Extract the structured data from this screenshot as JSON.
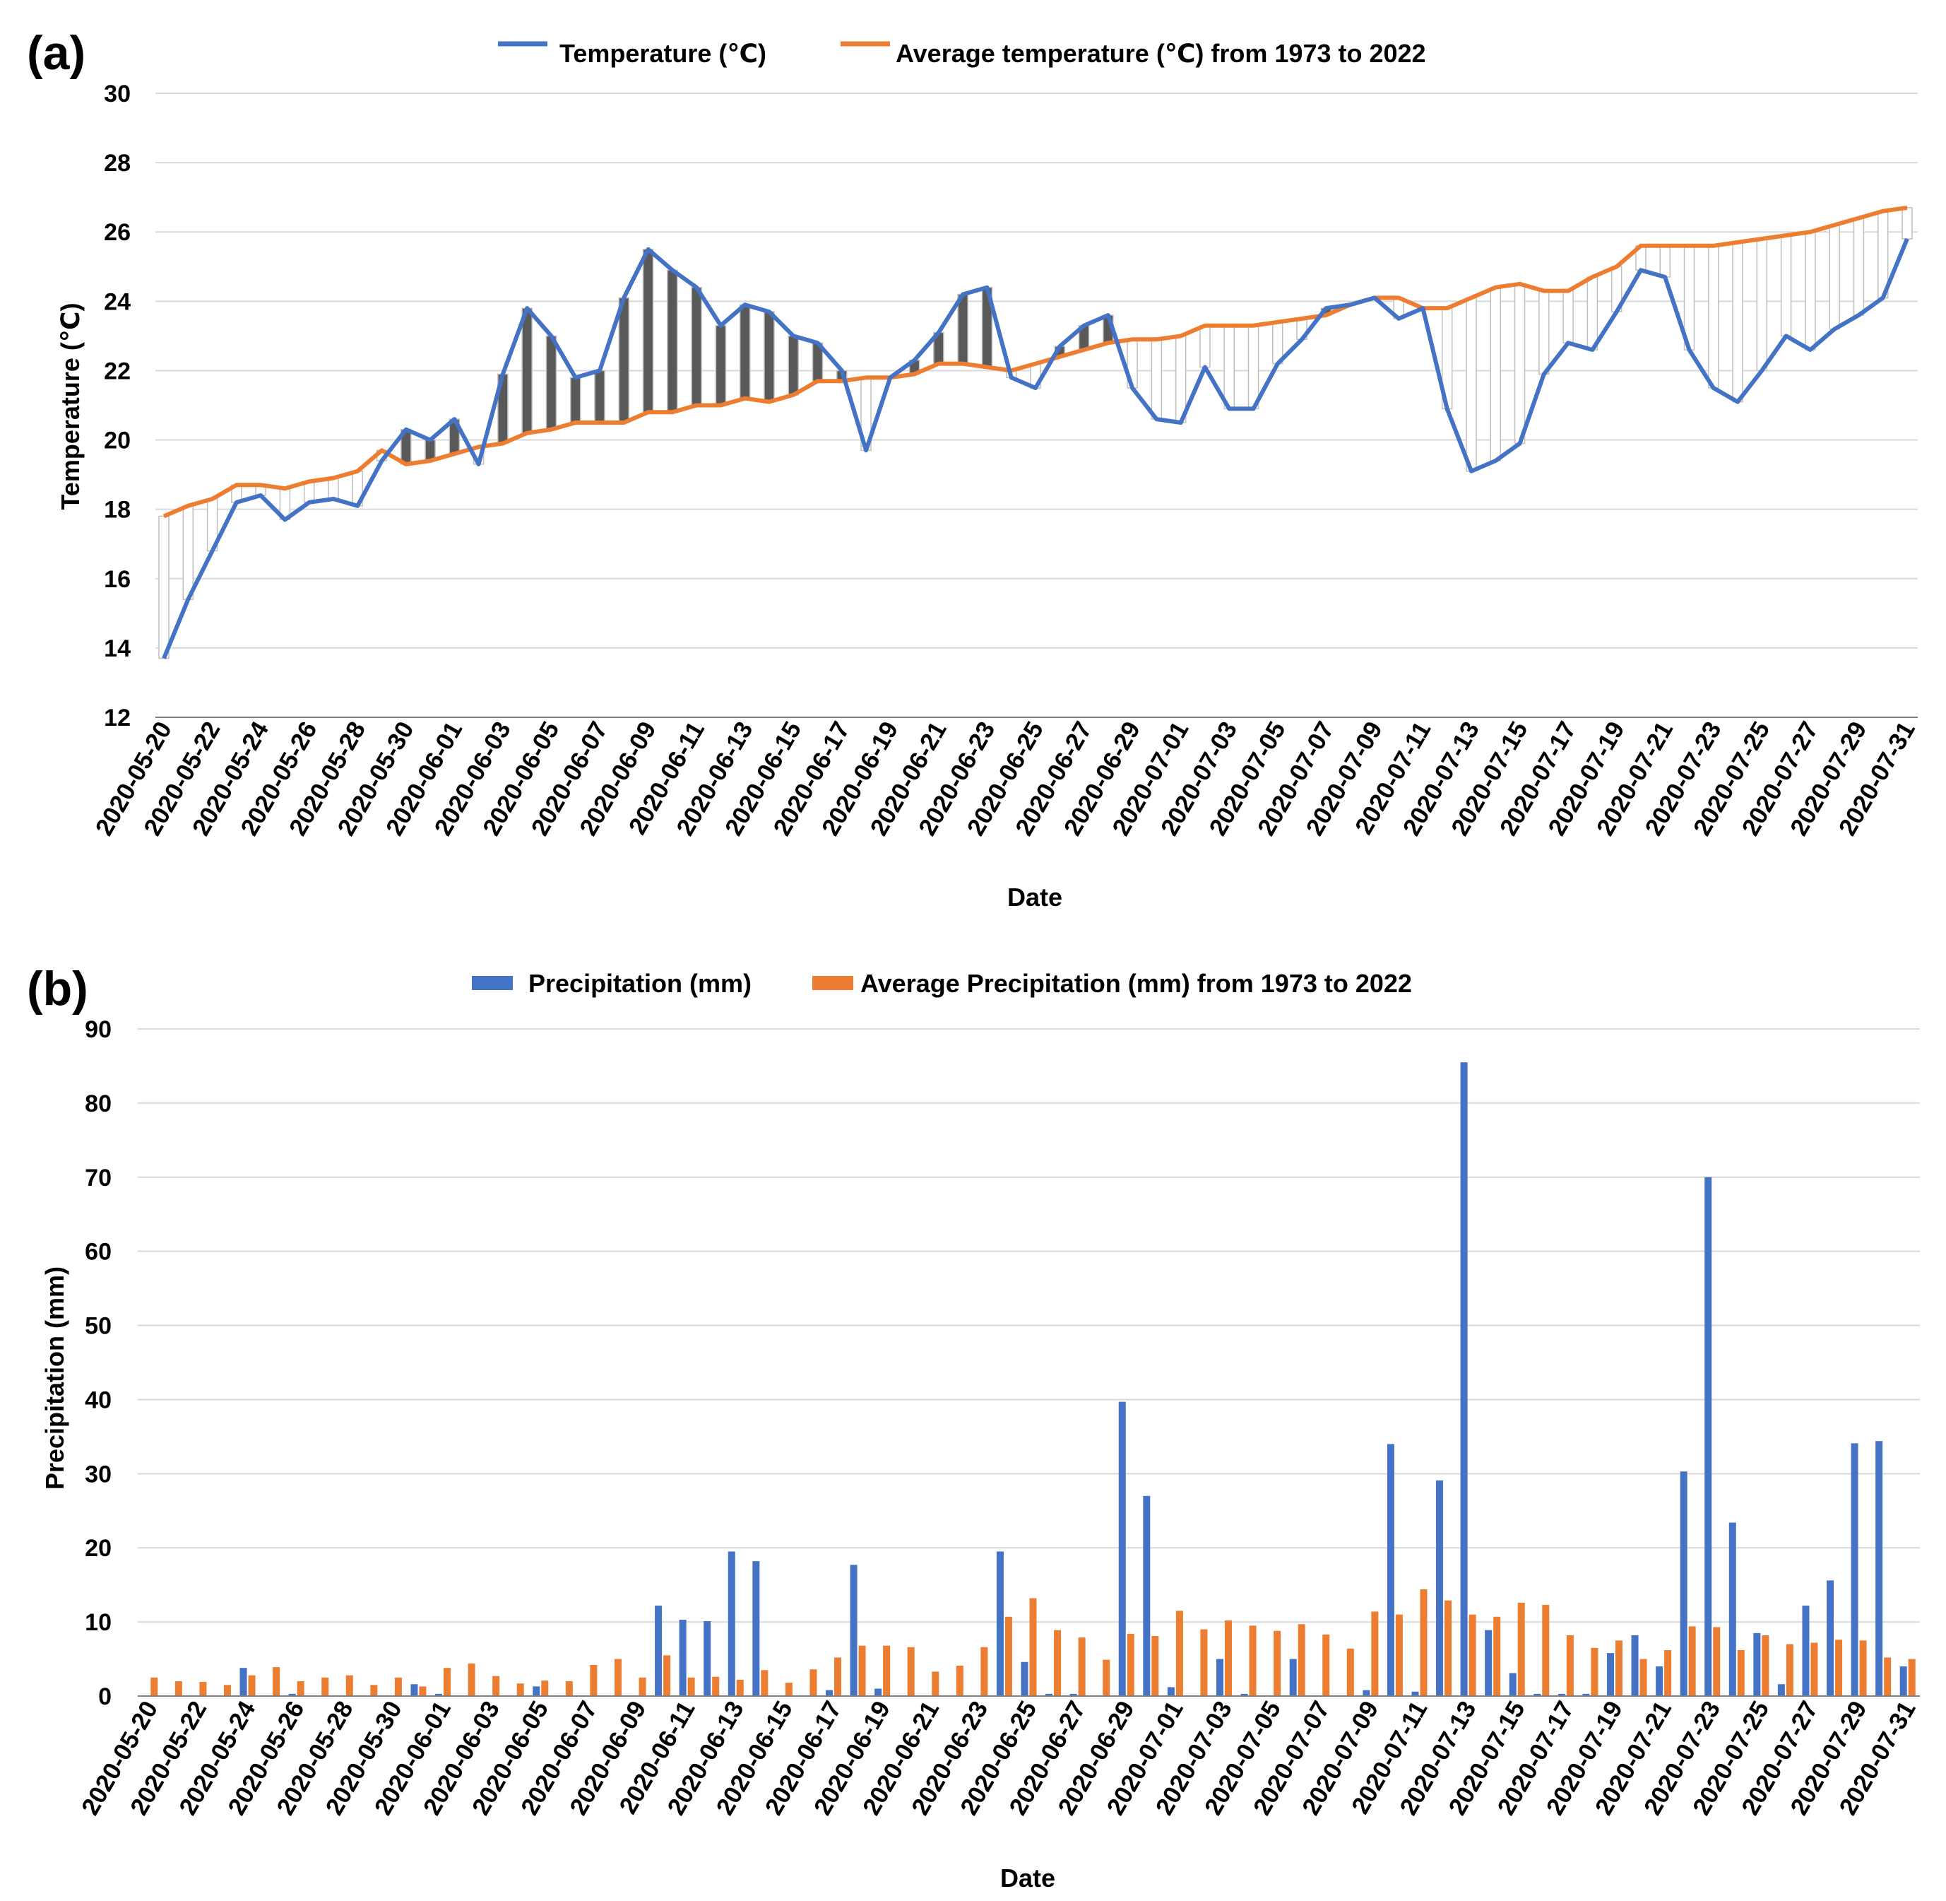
{
  "chart_data": [
    {
      "type": "line",
      "panel_label": "(a)",
      "xlabel": "Date",
      "ylabel": "Temperature (℃)",
      "ylim": [
        12,
        30
      ],
      "yticks": [
        12,
        14,
        16,
        18,
        20,
        22,
        24,
        26,
        28,
        30
      ],
      "dates": [
        "2020-05-20",
        "2020-05-21",
        "2020-05-22",
        "2020-05-23",
        "2020-05-24",
        "2020-05-25",
        "2020-05-26",
        "2020-05-27",
        "2020-05-28",
        "2020-05-29",
        "2020-05-30",
        "2020-05-31",
        "2020-06-01",
        "2020-06-02",
        "2020-06-03",
        "2020-06-04",
        "2020-06-05",
        "2020-06-06",
        "2020-06-07",
        "2020-06-08",
        "2020-06-09",
        "2020-06-10",
        "2020-06-11",
        "2020-06-12",
        "2020-06-13",
        "2020-06-14",
        "2020-06-15",
        "2020-06-16",
        "2020-06-17",
        "2020-06-18",
        "2020-06-19",
        "2020-06-20",
        "2020-06-21",
        "2020-06-22",
        "2020-06-23",
        "2020-06-24",
        "2020-06-25",
        "2020-06-26",
        "2020-06-27",
        "2020-06-28",
        "2020-06-29",
        "2020-06-30",
        "2020-07-01",
        "2020-07-02",
        "2020-07-03",
        "2020-07-04",
        "2020-07-05",
        "2020-07-06",
        "2020-07-07",
        "2020-07-08",
        "2020-07-09",
        "2020-07-10",
        "2020-07-11",
        "2020-07-12",
        "2020-07-13",
        "2020-07-14",
        "2020-07-15",
        "2020-07-16",
        "2020-07-17",
        "2020-07-18",
        "2020-07-19",
        "2020-07-20",
        "2020-07-21",
        "2020-07-22",
        "2020-07-23",
        "2020-07-24",
        "2020-07-25",
        "2020-07-26",
        "2020-07-27",
        "2020-07-28",
        "2020-07-29",
        "2020-07-30",
        "2020-07-31"
      ],
      "tick_labels": [
        "2020-05-20",
        "2020-05-22",
        "2020-05-24",
        "2020-05-26",
        "2020-05-28",
        "2020-05-30",
        "2020-06-01",
        "2020-06-03",
        "2020-06-05",
        "2020-06-07",
        "2020-06-09",
        "2020-06-11",
        "2020-06-13",
        "2020-06-15",
        "2020-06-17",
        "2020-06-19",
        "2020-06-21",
        "2020-06-23",
        "2020-06-25",
        "2020-06-27",
        "2020-06-29",
        "2020-07-01",
        "2020-07-03",
        "2020-07-05",
        "2020-07-07",
        "2020-07-09",
        "2020-07-11",
        "2020-07-13",
        "2020-07-15",
        "2020-07-17",
        "2020-07-19",
        "2020-07-21",
        "2020-07-23",
        "2020-07-25",
        "2020-07-27",
        "2020-07-29",
        "2020-07-31"
      ],
      "series": [
        {
          "name": "Temperature (℃)",
          "color": "#4472C4",
          "values": [
            13.7,
            15.4,
            16.8,
            18.2,
            18.4,
            17.7,
            18.2,
            18.3,
            18.1,
            19.4,
            20.3,
            20.0,
            20.6,
            19.3,
            21.9,
            23.8,
            23.0,
            21.8,
            22.0,
            24.1,
            25.5,
            24.9,
            24.4,
            23.3,
            23.9,
            23.7,
            23.0,
            22.8,
            22.0,
            19.7,
            21.8,
            22.3,
            23.1,
            24.2,
            24.4,
            21.8,
            21.5,
            22.7,
            23.3,
            23.6,
            21.5,
            20.6,
            20.5,
            22.1,
            20.9,
            20.9,
            22.2,
            22.9,
            23.8,
            23.9,
            24.1,
            23.5,
            23.8,
            20.9,
            19.1,
            19.4,
            19.9,
            21.9,
            22.8,
            22.6,
            23.7,
            24.9,
            24.7,
            22.6,
            21.5,
            21.1,
            22.0,
            23.0,
            22.6,
            23.2,
            23.6,
            24.1,
            25.8
          ]
        },
        {
          "name": "Average temperature (℃) from 1973 to 2022",
          "color": "#ED7D31",
          "values": [
            17.8,
            18.1,
            18.3,
            18.7,
            18.7,
            18.6,
            18.8,
            18.9,
            19.1,
            19.7,
            19.3,
            19.4,
            19.6,
            19.8,
            19.9,
            20.2,
            20.3,
            20.5,
            20.5,
            20.5,
            20.8,
            20.8,
            21.0,
            21.0,
            21.2,
            21.1,
            21.3,
            21.7,
            21.7,
            21.8,
            21.8,
            21.9,
            22.2,
            22.2,
            22.1,
            22.0,
            22.2,
            22.4,
            22.6,
            22.8,
            22.9,
            22.9,
            23.0,
            23.3,
            23.3,
            23.3,
            23.4,
            23.5,
            23.6,
            23.9,
            24.1,
            24.1,
            23.8,
            23.8,
            24.1,
            24.4,
            24.5,
            24.3,
            24.3,
            24.7,
            25.0,
            25.6,
            25.6,
            25.6,
            25.6,
            25.7,
            25.8,
            25.9,
            26.0,
            26.2,
            26.4,
            26.6,
            26.7
          ]
        }
      ],
      "difference_bars": {
        "warmer_color": "#595959",
        "cooler_color": "#ffffff",
        "outline": "#BFBFBF"
      }
    },
    {
      "type": "bar",
      "panel_label": "(b)",
      "xlabel": "Date",
      "ylabel": "Precipitation (mm)",
      "ylim": [
        0,
        90
      ],
      "yticks": [
        0,
        10,
        20,
        30,
        40,
        50,
        60,
        70,
        80,
        90
      ],
      "tick_labels": [
        "2020-05-20",
        "2020-05-22",
        "2020-05-24",
        "2020-05-26",
        "2020-05-28",
        "2020-05-30",
        "2020-06-01",
        "2020-06-03",
        "2020-06-05",
        "2020-06-07",
        "2020-06-09",
        "2020-06-11",
        "2020-06-13",
        "2020-06-15",
        "2020-06-17",
        "2020-06-19",
        "2020-06-21",
        "2020-06-23",
        "2020-06-25",
        "2020-06-27",
        "2020-06-29",
        "2020-07-01",
        "2020-07-03",
        "2020-07-05",
        "2020-07-07",
        "2020-07-09",
        "2020-07-11",
        "2020-07-13",
        "2020-07-15",
        "2020-07-17",
        "2020-07-19",
        "2020-07-21",
        "2020-07-23",
        "2020-07-25",
        "2020-07-27",
        "2020-07-29",
        "2020-07-31"
      ],
      "series": [
        {
          "name": "Precipitation (mm)",
          "color": "#4472C4",
          "values": [
            0,
            0,
            0,
            0,
            3.8,
            0,
            0.3,
            0,
            0,
            0,
            0,
            1.6,
            0.3,
            0,
            0,
            0,
            1.3,
            0,
            0,
            0,
            0,
            12.2,
            10.3,
            10.1,
            19.5,
            18.2,
            0,
            0,
            0.8,
            17.7,
            1.0,
            0,
            0,
            0,
            0,
            19.5,
            4.6,
            0.3,
            0.3,
            0,
            39.7,
            27.0,
            1.2,
            0,
            5.0,
            0.3,
            0,
            5.0,
            0,
            0,
            0.8,
            34.0,
            0.6,
            29.1,
            85.5,
            8.9,
            3.1,
            0.3,
            0.3,
            0.3,
            5.8,
            8.2,
            4.0,
            30.3,
            70.0,
            23.4,
            8.5,
            1.6,
            12.2,
            15.6,
            34.1,
            34.4,
            4.0
          ]
        },
        {
          "name": "Average Precipitation (mm) from 1973 to 2022",
          "color": "#ED7D31",
          "values": [
            2.5,
            2.0,
            1.9,
            1.5,
            2.8,
            3.9,
            2.0,
            2.5,
            2.8,
            1.5,
            2.5,
            1.3,
            3.8,
            4.4,
            2.7,
            1.7,
            2.1,
            2.0,
            4.2,
            5.0,
            2.5,
            5.5,
            2.5,
            2.6,
            2.2,
            3.5,
            1.8,
            3.6,
            5.2,
            6.8,
            6.8,
            6.6,
            3.3,
            4.1,
            6.6,
            10.7,
            13.2,
            8.9,
            7.9,
            4.9,
            8.4,
            8.1,
            11.5,
            9.0,
            10.2,
            9.5,
            8.8,
            9.7,
            8.3,
            6.4,
            11.4,
            11.0,
            14.4,
            12.9,
            11.0,
            10.7,
            12.6,
            12.3,
            8.2,
            6.5,
            7.5,
            5.0,
            6.2,
            9.4,
            9.3,
            6.2,
            8.2,
            7.0,
            7.2,
            7.6,
            7.5,
            5.2,
            5.0
          ]
        }
      ]
    }
  ]
}
